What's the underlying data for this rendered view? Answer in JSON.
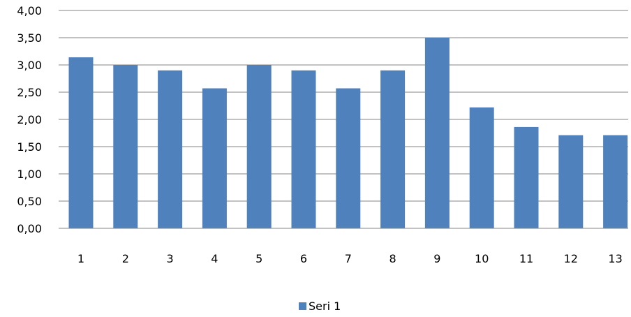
{
  "chart_data": {
    "type": "bar",
    "categories": [
      "1",
      "2",
      "3",
      "4",
      "5",
      "6",
      "7",
      "8",
      "9",
      "10",
      "11",
      "12",
      "13"
    ],
    "series": [
      {
        "name": "Seri 1",
        "values": [
          3.14,
          3.0,
          2.9,
          2.57,
          3.0,
          2.9,
          2.57,
          2.9,
          3.5,
          2.22,
          1.86,
          1.71,
          1.71
        ],
        "color": "#4f81bd"
      }
    ],
    "y_ticks": [
      "0,00",
      "0,50",
      "1,00",
      "1,50",
      "2,00",
      "2,50",
      "3,00",
      "3,50",
      "4,00"
    ],
    "ylim": [
      0,
      4
    ],
    "grid": true,
    "legend": "bottom",
    "title": "",
    "xlabel": "",
    "ylabel": ""
  }
}
